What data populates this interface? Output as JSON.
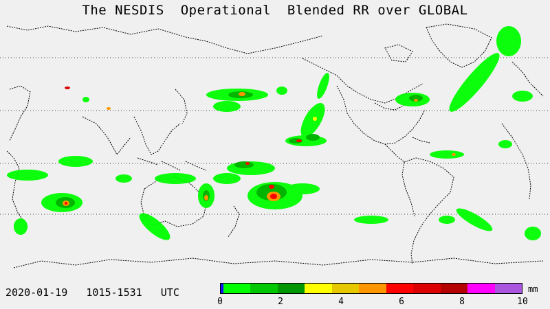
{
  "title": "The NESDIS  Operational  Blended RR over GLOBAL",
  "timestamp": "2020-01-19   1015-1531   UTC",
  "colorbar": {
    "unit": "mm",
    "ticks": [
      "0",
      "2",
      "4",
      "6",
      "8",
      "10"
    ],
    "colors": [
      "#1010ff",
      "#00ff00",
      "#00c800",
      "#009600",
      "#ffff00",
      "#e6c800",
      "#ff9600",
      "#ff0000",
      "#dc0000",
      "#b40000",
      "#ff00ff",
      "#aa55dd"
    ]
  },
  "map": {
    "ocean_color": "#f0f0f0",
    "coastline_color": "#000000",
    "precip_colors": {
      "light": "#00ff00",
      "moderate": "#00c800",
      "heavy": "#009600",
      "very_heavy": "#ffff00",
      "intense": "#ff9600",
      "extreme": "#ff0000"
    }
  }
}
